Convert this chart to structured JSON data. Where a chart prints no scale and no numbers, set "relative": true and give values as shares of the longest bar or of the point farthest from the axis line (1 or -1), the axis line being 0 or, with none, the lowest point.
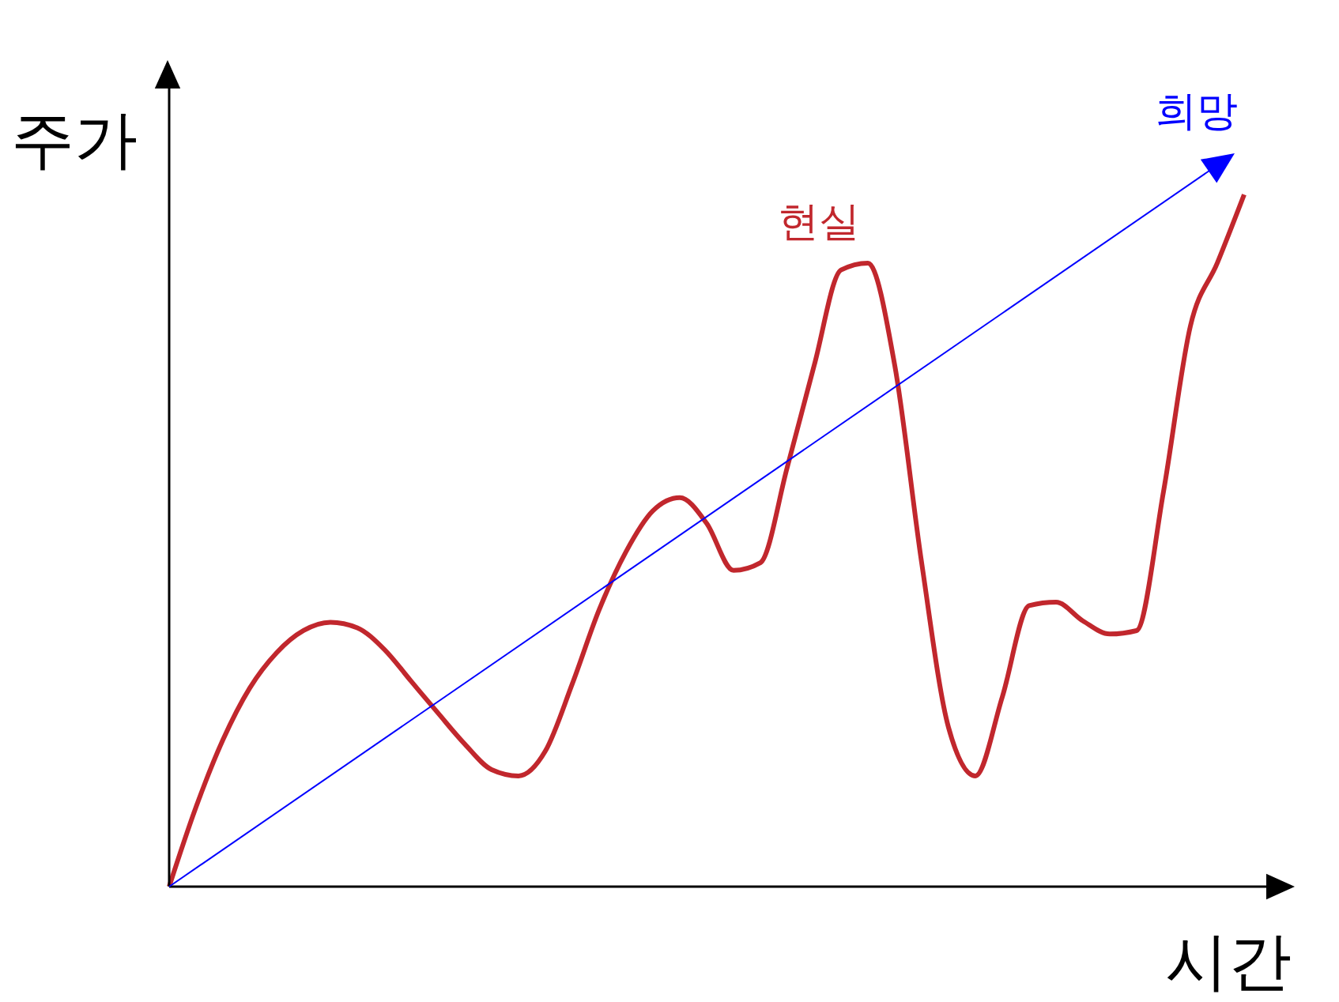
{
  "chart_data": {
    "type": "line",
    "annotations": [
      "희망"
    ],
    "xlabel": "시간",
    "ylabel": "주가",
    "relative": true,
    "legend": false,
    "marker": "none",
    "categories": [
      null,
      null,
      null,
      null,
      null,
      null,
      null,
      null,
      null,
      null,
      null,
      null,
      null,
      null,
      null,
      null,
      null,
      null,
      null,
      null,
      null,
      null,
      null,
      null,
      null,
      null,
      null,
      null,
      null,
      null,
      null,
      null,
      null,
      null,
      null,
      null,
      null,
      null,
      null,
      null,
      null
    ],
    "series": [
      {
        "name": "현실",
        "color": "#c1272d",
        "values": [
          0,
          0.115,
          0.212,
          0.287,
          0.338,
          0.37,
          0.382,
          0.374,
          0.343,
          0.297,
          0.251,
          0.206,
          0.169,
          0.16,
          0.196,
          0.293,
          0.4,
          0.484,
          0.543,
          0.562,
          0.525,
          0.457,
          0.468,
          0.606,
          0.753,
          0.891,
          0.901,
          0.753,
          0.468,
          0.23,
          0.16,
          0.274,
          0.406,
          0.411,
          0.384,
          0.365,
          0.37,
          0.571,
          0.81,
          0.901,
          1
        ]
      }
    ]
  }
}
